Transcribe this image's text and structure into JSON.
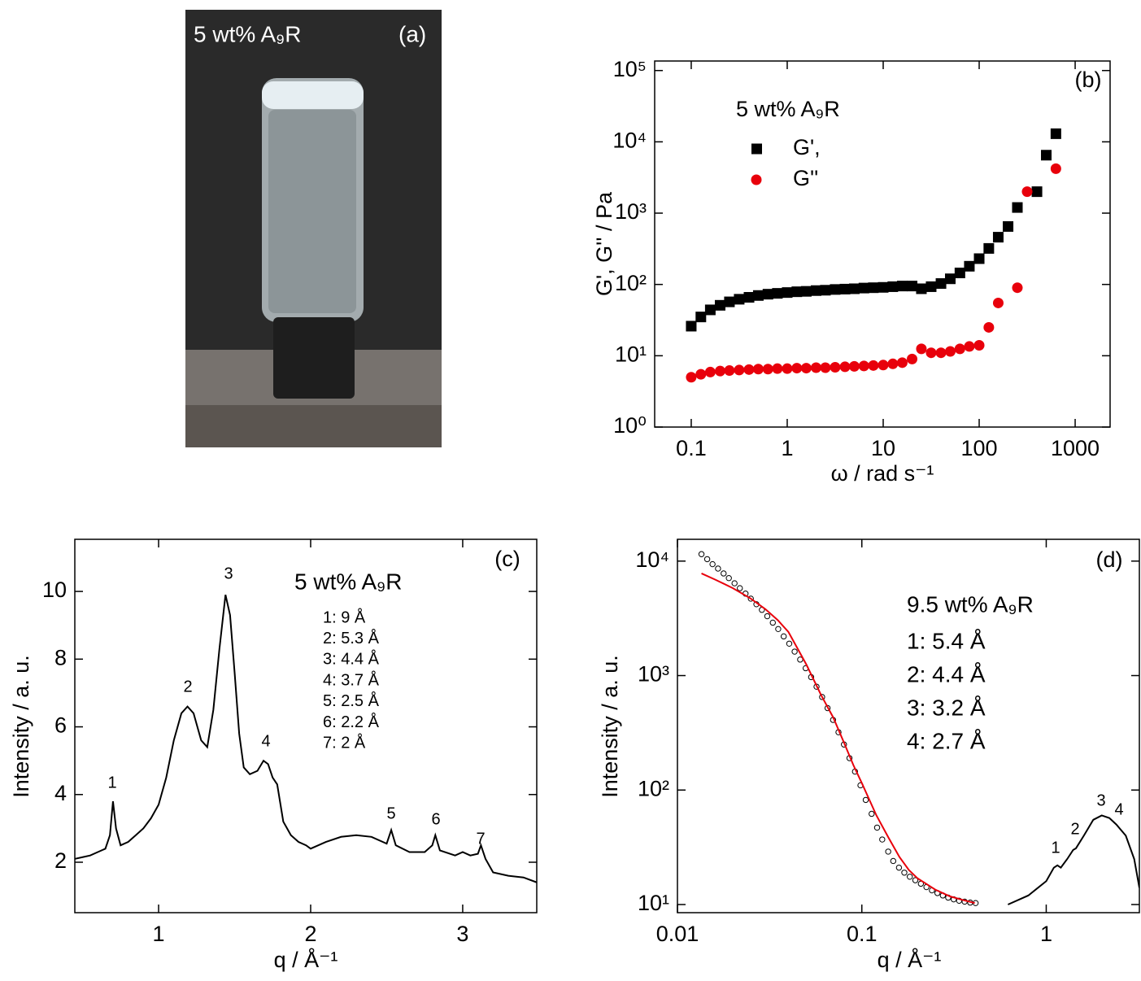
{
  "photo": {
    "caption": "5 wt% A₉R",
    "panel_label": "(a)"
  },
  "chart_data": [
    {
      "type": "scatter",
      "panel_label": "(b)",
      "legend_title": "5 wt% A₉R",
      "xlabel": "ω / rad s⁻¹",
      "ylabel": "G', G'' / Pa",
      "xscale": "log",
      "yscale": "log",
      "xlim": [
        0.0416,
        2312
      ],
      "ylim": [
        1,
        136000
      ],
      "xticks": [
        0.1,
        1,
        10,
        100,
        1000
      ],
      "yticks": [
        {
          "value": 1,
          "label": "10⁰"
        },
        {
          "value": 10,
          "label": "10¹"
        },
        {
          "value": 100,
          "label": "10²"
        },
        {
          "value": 1000,
          "label": "10³"
        },
        {
          "value": 10000,
          "label": "10⁴"
        },
        {
          "value": 100000,
          "label": "10⁵"
        }
      ],
      "series": [
        {
          "name": "G',",
          "color": "#000000",
          "style": "square",
          "x": [
            0.1,
            0.126,
            0.158,
            0.2,
            0.25,
            0.316,
            0.4,
            0.5,
            0.63,
            0.79,
            1,
            1.26,
            1.58,
            2,
            2.5,
            3.16,
            4,
            5,
            6.3,
            7.9,
            10,
            12.6,
            15.8,
            20,
            25,
            31.6,
            40,
            50,
            63,
            79,
            100,
            126,
            158,
            200,
            250,
            400,
            500,
            630
          ],
          "values": [
            26,
            35,
            44,
            51,
            57,
            62,
            66,
            70,
            73,
            75,
            77,
            79,
            80,
            82,
            83,
            85,
            86,
            87,
            89,
            90,
            91,
            93,
            95,
            95,
            87,
            93,
            103,
            120,
            145,
            180,
            230,
            320,
            460,
            650,
            1200,
            2000,
            6500,
            13000
          ]
        },
        {
          "name": "G''",
          "color": "#e8000b",
          "style": "circle",
          "x": [
            0.1,
            0.126,
            0.158,
            0.2,
            0.25,
            0.316,
            0.4,
            0.5,
            0.63,
            0.79,
            1,
            1.26,
            1.58,
            2,
            2.5,
            3.16,
            4,
            5,
            6.3,
            7.9,
            10,
            12.6,
            15.8,
            20,
            25,
            31.6,
            40,
            50,
            63,
            79,
            100,
            126,
            158,
            250,
            316,
            630
          ],
          "values": [
            5,
            5.5,
            5.9,
            6.1,
            6.2,
            6.3,
            6.4,
            6.5,
            6.5,
            6.6,
            6.6,
            6.7,
            6.7,
            6.8,
            6.8,
            6.9,
            7,
            7.1,
            7.2,
            7.3,
            7.4,
            7.7,
            8,
            9,
            12.5,
            11,
            11,
            11.5,
            12.5,
            13.5,
            14,
            25,
            55,
            90,
            2000,
            4200
          ]
        }
      ]
    },
    {
      "type": "line",
      "panel_label": "(c)",
      "xlabel": "q / Å⁻¹",
      "ylabel": "Intensity / a. u.",
      "xscale": "linear",
      "yscale": "linear",
      "xlim": [
        0.449,
        3.487
      ],
      "ylim": [
        0.51,
        11.54
      ],
      "xticks": [
        1,
        2,
        3
      ],
      "yticks": [
        2,
        4,
        6,
        8,
        10
      ],
      "notes_title": "5 wt% A₉R",
      "notes": [
        "1: 9 Å",
        "2: 5.3 Å",
        "3: 4.4 Å",
        "4: 3.7 Å",
        "5: 2.5 Å",
        "6: 2.2 Å",
        "7: 2 Å"
      ],
      "peak_labels": [
        "1",
        "2",
        "3",
        "4",
        "5",
        "6",
        "7"
      ],
      "series": [
        {
          "color": "#000000",
          "style": "line",
          "x": [
            0.45,
            0.5,
            0.55,
            0.6,
            0.65,
            0.68,
            0.7,
            0.72,
            0.75,
            0.8,
            0.85,
            0.9,
            0.95,
            1.0,
            1.05,
            1.1,
            1.15,
            1.19,
            1.23,
            1.28,
            1.32,
            1.36,
            1.4,
            1.44,
            1.47,
            1.5,
            1.53,
            1.56,
            1.6,
            1.65,
            1.69,
            1.72,
            1.75,
            1.78,
            1.82,
            1.87,
            1.92,
            1.97,
            2.0,
            2.1,
            2.2,
            2.3,
            2.4,
            2.5,
            2.53,
            2.56,
            2.65,
            2.75,
            2.8,
            2.82,
            2.85,
            2.95,
            3.0,
            3.05,
            3.1,
            3.12,
            3.15,
            3.2,
            3.3,
            3.4,
            3.49
          ],
          "values": [
            2.1,
            2.15,
            2.2,
            2.3,
            2.4,
            2.8,
            3.8,
            3.0,
            2.5,
            2.6,
            2.8,
            3.0,
            3.3,
            3.7,
            4.5,
            5.6,
            6.4,
            6.6,
            6.4,
            5.6,
            5.4,
            6.5,
            8.3,
            9.9,
            9.3,
            7.6,
            5.8,
            4.8,
            4.6,
            4.7,
            5.0,
            4.9,
            4.5,
            4.3,
            3.2,
            2.8,
            2.6,
            2.5,
            2.4,
            2.6,
            2.75,
            2.8,
            2.75,
            2.55,
            2.95,
            2.5,
            2.3,
            2.3,
            2.5,
            2.8,
            2.35,
            2.2,
            2.3,
            2.2,
            2.25,
            2.5,
            2.1,
            1.7,
            1.6,
            1.55,
            1.4
          ]
        }
      ]
    },
    {
      "type": "line",
      "panel_label": "(d)",
      "xlabel": "q / Å⁻¹",
      "ylabel": "Intensity / a. u.",
      "xscale": "log",
      "yscale": "log",
      "xlim": [
        0.01,
        3.2
      ],
      "ylim": [
        8.49,
        15500
      ],
      "xticks": [
        0.01,
        0.1,
        1
      ],
      "yticks": [
        {
          "value": 10,
          "label": "10¹"
        },
        {
          "value": 100,
          "label": "10²"
        },
        {
          "value": 1000,
          "label": "10³"
        },
        {
          "value": 10000,
          "label": "10⁴"
        }
      ],
      "notes_title": "9.5 wt% A₉R",
      "notes": [
        "1: 5.4 Å",
        "2: 4.4 Å",
        "3: 3.2 Å",
        "4: 2.7 Å"
      ],
      "peak_labels": [
        "1",
        "2",
        "3",
        "4"
      ],
      "series": [
        {
          "color": "#000000",
          "style": "circle-open",
          "x": [
            0.0135,
            0.0145,
            0.0155,
            0.0166,
            0.0178,
            0.019,
            0.0204,
            0.0218,
            0.0234,
            0.025,
            0.0268,
            0.0287,
            0.0307,
            0.0329,
            0.0352,
            0.0377,
            0.0404,
            0.0432,
            0.0463,
            0.0496,
            0.0531,
            0.0568,
            0.0609,
            0.0652,
            0.0698,
            0.0747,
            0.08,
            0.0857,
            0.0918,
            0.0983,
            0.105,
            0.113,
            0.121,
            0.129,
            0.139,
            0.148,
            0.159,
            0.17,
            0.182,
            0.195,
            0.209,
            0.224,
            0.24,
            0.257,
            0.275,
            0.294,
            0.315,
            0.337,
            0.361,
            0.387,
            0.414
          ],
          "values": [
            11500,
            10400,
            9400,
            8600,
            7800,
            7100,
            6400,
            5800,
            5200,
            4700,
            4200,
            3750,
            3300,
            2900,
            2550,
            2200,
            1900,
            1620,
            1380,
            1160,
            970,
            800,
            650,
            520,
            410,
            320,
            250,
            190,
            145,
            110,
            82,
            62,
            47,
            37,
            29,
            24,
            21,
            19,
            17.5,
            16.3,
            15.2,
            14.2,
            13.3,
            12.6,
            12,
            11.5,
            11.1,
            10.8,
            10.6,
            10.4,
            10.3
          ]
        },
        {
          "color": "#e8000b",
          "style": "line",
          "x": [
            0.0135,
            0.016,
            0.02,
            0.025,
            0.03,
            0.035,
            0.04,
            0.05,
            0.06,
            0.07,
            0.08,
            0.09,
            0.1,
            0.12,
            0.14,
            0.16,
            0.18,
            0.2,
            0.25,
            0.3,
            0.35,
            0.41
          ],
          "values": [
            7800,
            6900,
            5800,
            4700,
            3800,
            3050,
            2400,
            1250,
            680,
            430,
            260,
            165,
            115,
            60,
            38,
            26,
            20,
            17,
            13.5,
            11.8,
            11,
            10.3
          ]
        },
        {
          "color": "#000000",
          "style": "line",
          "x": [
            0.62,
            0.8,
            1.0,
            1.1,
            1.15,
            1.2,
            1.3,
            1.4,
            1.45,
            1.6,
            1.8,
            2.0,
            2.2,
            2.4,
            2.7,
            3.0,
            3.2
          ],
          "values": [
            10,
            12,
            16,
            21,
            22,
            21,
            25,
            30,
            31,
            40,
            55,
            60,
            57,
            50,
            40,
            25,
            14
          ]
        }
      ]
    }
  ]
}
